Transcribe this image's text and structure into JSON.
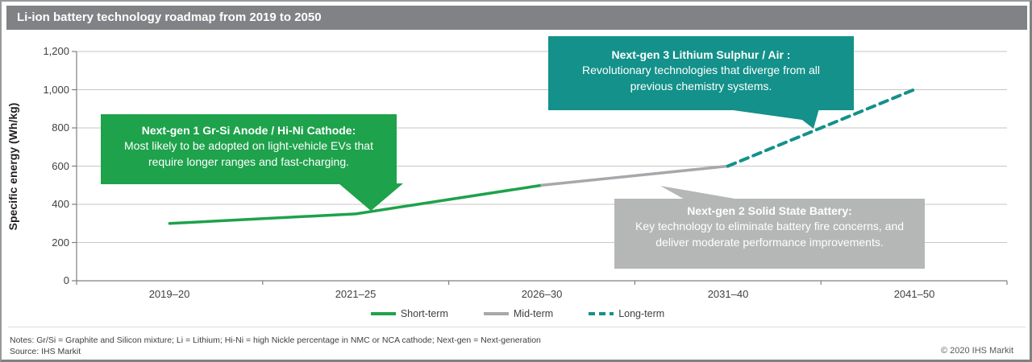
{
  "header": {
    "title": "Li-ion battery technology roadmap from 2019 to 2050"
  },
  "colors": {
    "header_bar": "#808285",
    "short_term_green": "#1ea24b",
    "mid_term_gray": "#a6a8ab",
    "long_term_teal": "#13918a",
    "gray_callout": "#b5b7b6"
  },
  "callouts": {
    "next_gen_1": {
      "title": "Next-gen 1 Gr-Si Anode / Hi-Ni Cathode:",
      "body": "Most likely to be adopted on light-vehicle EVs that require longer ranges and fast-charging."
    },
    "next_gen_2": {
      "title": "Next-gen 2 Solid State Battery:",
      "body": "Key technology to eliminate battery fire concerns, and deliver moderate performance improvements."
    },
    "next_gen_3": {
      "title": "Next-gen 3 Lithium Sulphur / Air :",
      "body": "Revolutionary technologies that diverge from all previous chemistry systems."
    }
  },
  "chart_data": {
    "type": "line",
    "title": "Li-ion battery technology roadmap from 2019 to 2050",
    "ylabel": "Specific energy (Wh/kg)",
    "xlabel": "",
    "ylim": [
      0,
      1200
    ],
    "ytick_step": 200,
    "yticks": [
      "0",
      "200",
      "400",
      "600",
      "800",
      "1,000",
      "1,200"
    ],
    "categories": [
      "2019–20",
      "2021–25",
      "2026–30",
      "2031–40",
      "2041–50"
    ],
    "grid": "horizontal",
    "legend_position": "bottom-center",
    "series": [
      {
        "name": "Short-term",
        "style": "solid",
        "color": "#1ea24b",
        "x_indices": [
          0,
          1,
          2
        ],
        "values": [
          300,
          350,
          500
        ]
      },
      {
        "name": "Mid-term",
        "style": "solid",
        "color": "#a6a8ab",
        "x_indices": [
          2,
          3
        ],
        "values": [
          500,
          600
        ]
      },
      {
        "name": "Long-term",
        "style": "dashed",
        "color": "#13918a",
        "x_indices": [
          3,
          4
        ],
        "values": [
          600,
          1000
        ]
      }
    ]
  },
  "footer": {
    "notes": "Notes: Gr/Si = Graphite and Silicon mixture; Li = Lithium; Hi-Ni = high Nickle percentage in NMC or NCA cathode; Next-gen = Next-generation",
    "source": "Source: IHS Markit",
    "copyright": "© 2020 IHS Markit"
  }
}
